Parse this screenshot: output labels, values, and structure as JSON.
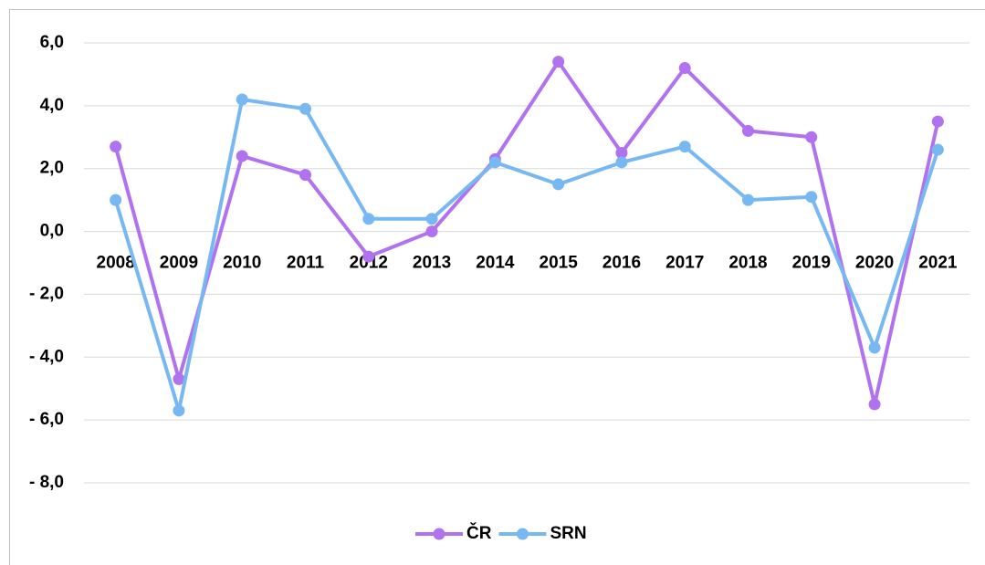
{
  "chart_data": {
    "type": "line",
    "categories": [
      "2008",
      "2009",
      "2010",
      "2011",
      "2012",
      "2013",
      "2014",
      "2015",
      "2016",
      "2017",
      "2018",
      "2019",
      "2020",
      "2021"
    ],
    "series": [
      {
        "name": "ČR",
        "color": "#b072ee",
        "values": [
          2.7,
          -4.7,
          2.4,
          1.8,
          -0.8,
          0.0,
          2.3,
          5.4,
          2.5,
          5.2,
          3.2,
          3.0,
          -5.5,
          3.5
        ]
      },
      {
        "name": "SRN",
        "color": "#78b8f2",
        "values": [
          1.0,
          -5.7,
          4.2,
          3.9,
          0.4,
          0.4,
          2.2,
          1.5,
          2.2,
          2.7,
          1.0,
          1.1,
          -3.7,
          2.6
        ]
      }
    ],
    "ylim": [
      -8,
      6
    ],
    "yticks": [
      {
        "value": -8,
        "label": "- 8,0"
      },
      {
        "value": -6,
        "label": "- 6,0"
      },
      {
        "value": -4,
        "label": "- 4,0"
      },
      {
        "value": -2,
        "label": "- 2,0"
      },
      {
        "value": 0,
        "label": "0,0"
      },
      {
        "value": 2,
        "label": "2,0"
      },
      {
        "value": 4,
        "label": "4,0"
      },
      {
        "value": 6,
        "label": "6,0"
      }
    ],
    "grid": true,
    "legend": "bottom"
  }
}
